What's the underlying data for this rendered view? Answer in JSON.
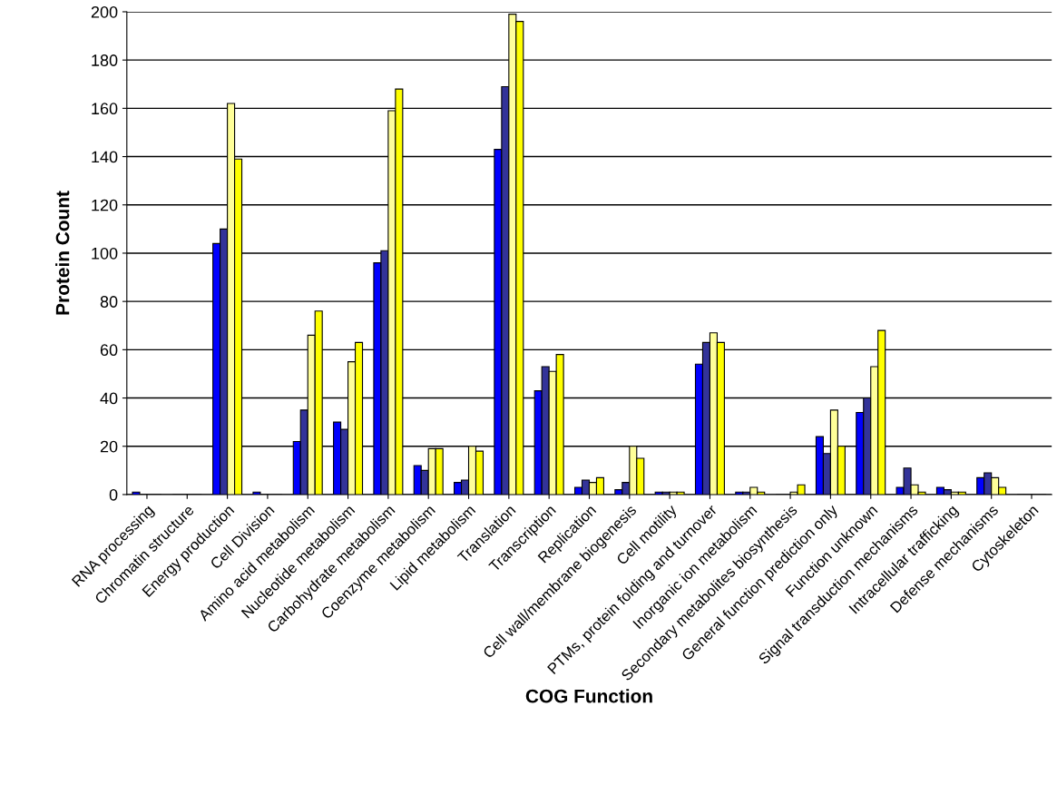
{
  "chart_data": {
    "type": "bar",
    "xlabel": "COG Function",
    "ylabel": "Protein Count",
    "categories": [
      "RNA processing",
      "Chromatin structure",
      "Energy production",
      "Cell Division",
      "Amino acid metabolism",
      "Nucleotide metabolism",
      "Carbohydrate metabolism",
      "Coenzyme metabolism",
      "Lipid metabolism",
      "Translation",
      "Transcription",
      "Replication",
      "Cell wall/membrane biogenesis",
      "Cell motility",
      "PTMs, protein folding and turnover",
      "Inorganic ion metabolism",
      "Secondary metabolites biosynthesis",
      "General function prediction only",
      "Function unknown",
      "Signal transduction mechanisms",
      "Intracellular trafficking",
      "Defense mechanisms",
      "Cytoskeleton"
    ],
    "series": [
      {
        "color": "#0000ff",
        "values": [
          1,
          0,
          104,
          1,
          22,
          30,
          96,
          12,
          5,
          143,
          43,
          3,
          2,
          1,
          54,
          1,
          0,
          24,
          34,
          3,
          3,
          7,
          0
        ]
      },
      {
        "color": "#333399",
        "values": [
          0,
          0,
          110,
          0,
          35,
          27,
          101,
          10,
          6,
          169,
          53,
          6,
          5,
          1,
          63,
          1,
          0,
          17,
          40,
          11,
          2,
          9,
          0
        ]
      },
      {
        "color": "#ffff99",
        "values": [
          0,
          0,
          162,
          0,
          66,
          55,
          159,
          19,
          20,
          199,
          51,
          5,
          20,
          1,
          67,
          3,
          1,
          35,
          53,
          4,
          1,
          7,
          0
        ]
      },
      {
        "color": "#ffff00",
        "values": [
          0,
          0,
          139,
          0,
          76,
          63,
          168,
          19,
          18,
          196,
          58,
          7,
          15,
          1,
          63,
          1,
          4,
          20,
          68,
          1,
          1,
          3,
          0
        ]
      }
    ],
    "ylim": [
      0,
      200
    ],
    "yticks": [
      0,
      20,
      40,
      60,
      80,
      100,
      120,
      140,
      160,
      180,
      200
    ],
    "grid": "y",
    "legend": false
  }
}
